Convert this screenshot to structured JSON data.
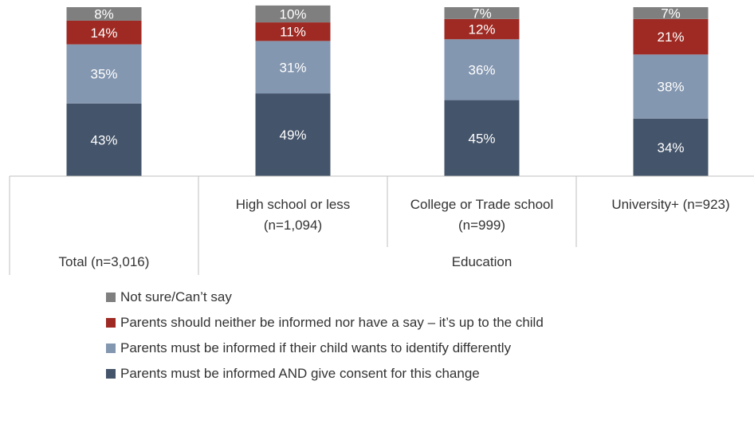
{
  "chart_data": {
    "type": "bar",
    "stacked": true,
    "normalized": true,
    "groups": [
      {
        "label": "",
        "span": [
          0,
          0
        ]
      },
      {
        "label": "Education",
        "span": [
          1,
          3
        ]
      }
    ],
    "categories": [
      "Total (n=3,016)",
      "High school or less\n(n=1,094)",
      "College or Trade school\n(n=999)",
      "University+ (n=923)"
    ],
    "series": [
      {
        "name": "Parents must be informed AND give consent for this change",
        "color": "#44546A",
        "values": [
          43,
          49,
          45,
          34
        ]
      },
      {
        "name": "Parents must be informed if their child wants to identify differently",
        "color": "#8497B0",
        "values": [
          35,
          31,
          36,
          38
        ]
      },
      {
        "name": "Parents should neither be informed nor have a say – it’s up to the child",
        "color": "#9E2A23",
        "values": [
          14,
          11,
          12,
          21
        ]
      },
      {
        "name": "Not sure/Can’t say",
        "color": "#7F7F7F",
        "values": [
          8,
          10,
          7,
          7
        ]
      }
    ],
    "value_suffix": "%",
    "ylim": [
      0,
      100
    ],
    "grid": false,
    "legend_position": "bottom",
    "legend_order": [
      3,
      2,
      1,
      0
    ]
  }
}
